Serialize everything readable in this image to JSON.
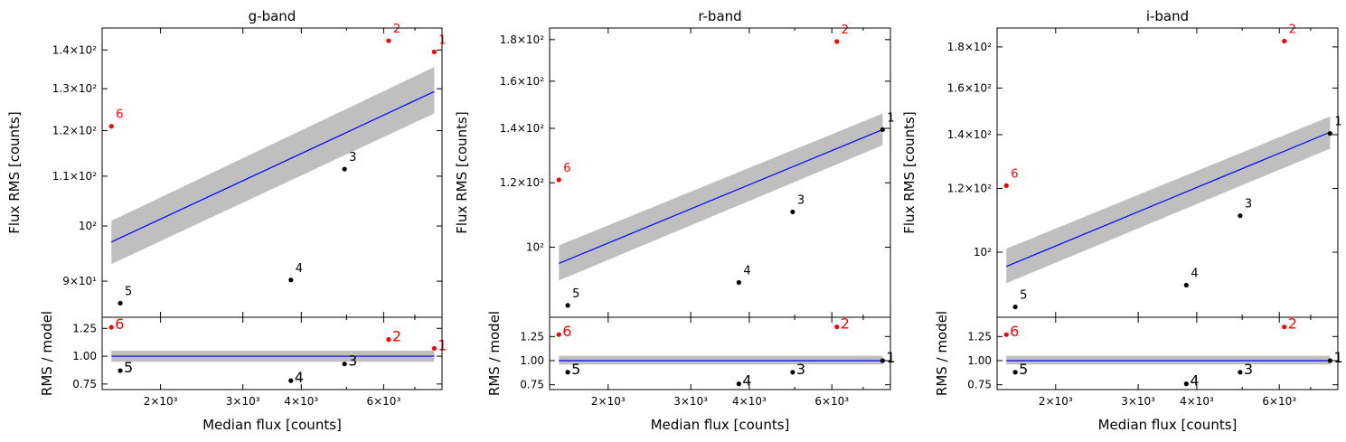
{
  "chart_data": [
    {
      "type": "scatter",
      "title": "g-band",
      "xlabel": "Median flux [counts]",
      "ylabel": "Flux RMS [counts]",
      "resid_ylabel": "RMS / model",
      "x_scale": "log",
      "y_scale": "log",
      "xlim": [
        1500,
        8000
      ],
      "ylim": [
        84,
        146
      ],
      "resid_ylim": [
        0.7,
        1.35
      ],
      "x_ticks": [
        {
          "v": 2000,
          "label": "2×10³"
        },
        {
          "v": 3000,
          "label": "3×10³"
        },
        {
          "v": 4000,
          "label": "4×10³"
        },
        {
          "v": 6000,
          "label": "6×10³"
        }
      ],
      "y_ticks": [
        {
          "v": 90,
          "label": "9×10¹"
        },
        {
          "v": 100,
          "label": "10²"
        },
        {
          "v": 110,
          "label": "1.1×10²"
        },
        {
          "v": 120,
          "label": "1.2×10²"
        },
        {
          "v": 130,
          "label": "1.3×10²"
        },
        {
          "v": 140,
          "label": "1.4×10²"
        }
      ],
      "resid_ticks": [
        {
          "v": 0.75,
          "label": "0.75"
        },
        {
          "v": 1.0,
          "label": "1.00"
        },
        {
          "v": 1.25,
          "label": "1.25"
        }
      ],
      "points": [
        {
          "label": "1",
          "x": 7700,
          "y": 139.5,
          "ratio": 1.07,
          "outlier": true
        },
        {
          "label": "2",
          "x": 6150,
          "y": 142.5,
          "ratio": 1.15,
          "outlier": true
        },
        {
          "label": "3",
          "x": 4950,
          "y": 111.5,
          "ratio": 0.93,
          "outlier": false
        },
        {
          "label": "4",
          "x": 3800,
          "y": 90.2,
          "ratio": 0.78,
          "outlier": false
        },
        {
          "label": "5",
          "x": 1640,
          "y": 86.3,
          "ratio": 0.87,
          "outlier": false
        },
        {
          "label": "6",
          "x": 1570,
          "y": 121,
          "ratio": 1.26,
          "outlier": true
        }
      ],
      "model": {
        "x": [
          1570,
          7700
        ],
        "y": [
          97,
          129.3
        ],
        "band_low": [
          93,
          124
        ],
        "band_high": [
          101,
          135.5
        ]
      },
      "resid_band": [
        0.95,
        1.05
      ],
      "colors": {
        "inlier": "#000000",
        "outlier": "#ff0000",
        "model": "#0000ff",
        "band": "#bfbfbf"
      }
    },
    {
      "type": "scatter",
      "title": "r-band",
      "xlabel": "Median flux [counts]",
      "ylabel": "Flux RMS [counts]",
      "resid_ylabel": "RMS / model",
      "x_scale": "log",
      "y_scale": "log",
      "xlim": [
        1500,
        8000
      ],
      "ylim": [
        82,
        186
      ],
      "resid_ylim": [
        0.7,
        1.45
      ],
      "x_ticks": [
        {
          "v": 2000,
          "label": "2×10³"
        },
        {
          "v": 3000,
          "label": "3×10³"
        },
        {
          "v": 4000,
          "label": "4×10³"
        },
        {
          "v": 6000,
          "label": "6×10³"
        }
      ],
      "y_ticks": [
        {
          "v": 100,
          "label": "10²"
        },
        {
          "v": 120,
          "label": "1.2×10²"
        },
        {
          "v": 140,
          "label": "1.4×10²"
        },
        {
          "v": 160,
          "label": "1.6×10²"
        },
        {
          "v": 180,
          "label": "1.8×10²"
        }
      ],
      "resid_ticks": [
        {
          "v": 0.75,
          "label": "0.75"
        },
        {
          "v": 1.0,
          "label": "1.00"
        },
        {
          "v": 1.25,
          "label": "1.25"
        }
      ],
      "points": [
        {
          "label": "1",
          "x": 7700,
          "y": 139.5,
          "ratio": 1.0,
          "outlier": false
        },
        {
          "label": "2",
          "x": 6150,
          "y": 179,
          "ratio": 1.35,
          "outlier": true
        },
        {
          "label": "3",
          "x": 4950,
          "y": 110.5,
          "ratio": 0.88,
          "outlier": false
        },
        {
          "label": "4",
          "x": 3800,
          "y": 90.5,
          "ratio": 0.76,
          "outlier": false
        },
        {
          "label": "5",
          "x": 1640,
          "y": 84.8,
          "ratio": 0.88,
          "outlier": false
        },
        {
          "label": "6",
          "x": 1570,
          "y": 121,
          "ratio": 1.27,
          "outlier": true
        }
      ],
      "model": {
        "x": [
          1570,
          7700
        ],
        "y": [
          95.5,
          139.5
        ],
        "band_low": [
          91,
          133.5
        ],
        "band_high": [
          100.5,
          146
        ]
      },
      "resid_band": [
        0.96,
        1.05
      ],
      "colors": {
        "inlier": "#000000",
        "outlier": "#ff0000",
        "model": "#0000ff",
        "band": "#bfbfbf"
      }
    },
    {
      "type": "scatter",
      "title": "i-band",
      "xlabel": "Median flux [counts]",
      "ylabel": "Flux RMS [counts]",
      "resid_ylabel": "RMS / model",
      "x_scale": "log",
      "y_scale": "log",
      "xlim": [
        1500,
        8000
      ],
      "ylim": [
        83,
        190
      ],
      "resid_ylim": [
        0.7,
        1.45
      ],
      "x_ticks": [
        {
          "v": 2000,
          "label": "2×10³"
        },
        {
          "v": 3000,
          "label": "3×10³"
        },
        {
          "v": 4000,
          "label": "4×10³"
        },
        {
          "v": 6000,
          "label": "6×10³"
        }
      ],
      "y_ticks": [
        {
          "v": 100,
          "label": "10²"
        },
        {
          "v": 120,
          "label": "1.2×10²"
        },
        {
          "v": 140,
          "label": "1.4×10²"
        },
        {
          "v": 160,
          "label": "1.6×10²"
        },
        {
          "v": 180,
          "label": "1.8×10²"
        }
      ],
      "resid_ticks": [
        {
          "v": 0.75,
          "label": "0.75"
        },
        {
          "v": 1.0,
          "label": "1.00"
        },
        {
          "v": 1.25,
          "label": "1.25"
        }
      ],
      "points": [
        {
          "label": "1",
          "x": 7700,
          "y": 140.5,
          "ratio": 1.0,
          "outlier": false
        },
        {
          "label": "2",
          "x": 6150,
          "y": 183,
          "ratio": 1.35,
          "outlier": true
        },
        {
          "label": "3",
          "x": 4950,
          "y": 111,
          "ratio": 0.88,
          "outlier": false
        },
        {
          "label": "4",
          "x": 3800,
          "y": 91,
          "ratio": 0.76,
          "outlier": false
        },
        {
          "label": "5",
          "x": 1640,
          "y": 85.5,
          "ratio": 0.88,
          "outlier": false
        },
        {
          "label": "6",
          "x": 1570,
          "y": 121,
          "ratio": 1.27,
          "outlier": true
        }
      ],
      "model": {
        "x": [
          1570,
          7700
        ],
        "y": [
          96,
          141
        ],
        "band_low": [
          91.5,
          134.5
        ],
        "band_high": [
          101,
          147.5
        ]
      },
      "resid_band": [
        0.96,
        1.05
      ],
      "colors": {
        "inlier": "#000000",
        "outlier": "#ff0000",
        "model": "#0000ff",
        "band": "#bfbfbf"
      }
    }
  ]
}
